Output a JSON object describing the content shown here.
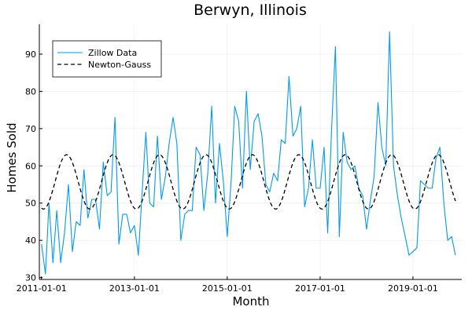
{
  "chart_data": {
    "type": "line",
    "title": "Berwyn, Illinois",
    "xlabel": "Month",
    "ylabel": "Homes Sold",
    "x_start": "2011-01-01",
    "x_step": "1 month",
    "xlim": [
      "2010-12-15",
      "2020-01-20"
    ],
    "ylim": [
      29.5,
      98
    ],
    "xticks": [
      "2011-01-01",
      "2013-01-01",
      "2015-01-01",
      "2017-01-01",
      "2019-01-01"
    ],
    "yticks": [
      30,
      40,
      50,
      60,
      70,
      80,
      90
    ],
    "grid": true,
    "legend": "top-left",
    "series": [
      {
        "name": "Zillow Data",
        "style": "solid",
        "color": "#009af9",
        "values": [
          39,
          31,
          50,
          34,
          48,
          34,
          42,
          55,
          37,
          45,
          44,
          59,
          46,
          51,
          51,
          43,
          61,
          52,
          53,
          73,
          39,
          47,
          47,
          42,
          44,
          36,
          52,
          69,
          50,
          49,
          68,
          51,
          57,
          66,
          73,
          66,
          40,
          47,
          48,
          48,
          65,
          63,
          48,
          58,
          76,
          50,
          66,
          56,
          41,
          56,
          76,
          72,
          54,
          80,
          59,
          72,
          74,
          68,
          55,
          53,
          58,
          56,
          67,
          66,
          84,
          68,
          70,
          76,
          49,
          54,
          67,
          54,
          54,
          65,
          42,
          70,
          92,
          41,
          69,
          61,
          59,
          60,
          54,
          52,
          43,
          51,
          57,
          77,
          65,
          60,
          96,
          60,
          52,
          46,
          41,
          36,
          37,
          38,
          56,
          55,
          54,
          54,
          62,
          65,
          50,
          40,
          41,
          36
        ]
      },
      {
        "name": "Newton-Gauss",
        "style": "dashed",
        "color": "#000000",
        "mean": 55.7,
        "amplitude": 7.3,
        "period_months": 12,
        "peak_month_index": 6.5
      }
    ]
  }
}
